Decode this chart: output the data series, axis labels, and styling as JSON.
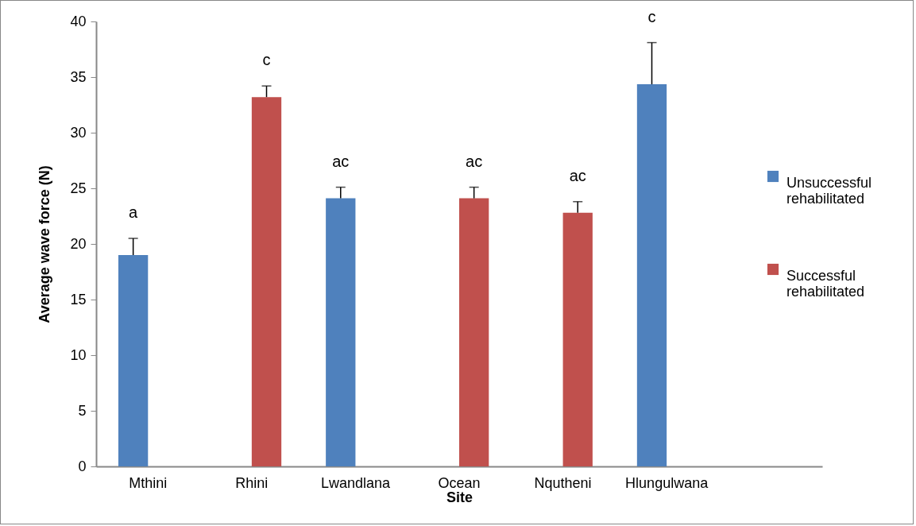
{
  "chart_data": {
    "type": "bar",
    "xlabel": "Site",
    "ylabel": "Average wave force (N)",
    "categories": [
      "Mthini",
      "Rhini",
      "Lwandlana",
      "Ocean",
      "Nqutheni",
      "Hlungulwana",
      null
    ],
    "series": [
      {
        "name": "Unsuccessful rehabilitated",
        "color": "#4f81bd",
        "values": [
          19.0,
          null,
          24.1,
          null,
          null,
          34.35,
          null
        ],
        "errors": [
          [
            19.0,
            20.5
          ],
          null,
          [
            24.1,
            25.1
          ],
          null,
          null,
          [
            34.35,
            38.1
          ],
          null
        ]
      },
      {
        "name": "Successful rehabilitated",
        "color": "#c0504d",
        "values": [
          null,
          33.2,
          null,
          24.1,
          22.8,
          null,
          null
        ],
        "errors": [
          null,
          [
            33.2,
            34.2
          ],
          null,
          [
            24.1,
            25.1
          ],
          [
            22.8,
            23.8
          ],
          null,
          null
        ]
      }
    ],
    "ylim": [
      0,
      40
    ],
    "yticks": [
      0,
      5,
      10,
      15,
      20,
      25,
      30,
      35,
      40
    ],
    "grid": false,
    "legend": "right",
    "annotations": [
      "a",
      "c",
      "ac",
      "ac",
      "ac",
      "c"
    ]
  }
}
